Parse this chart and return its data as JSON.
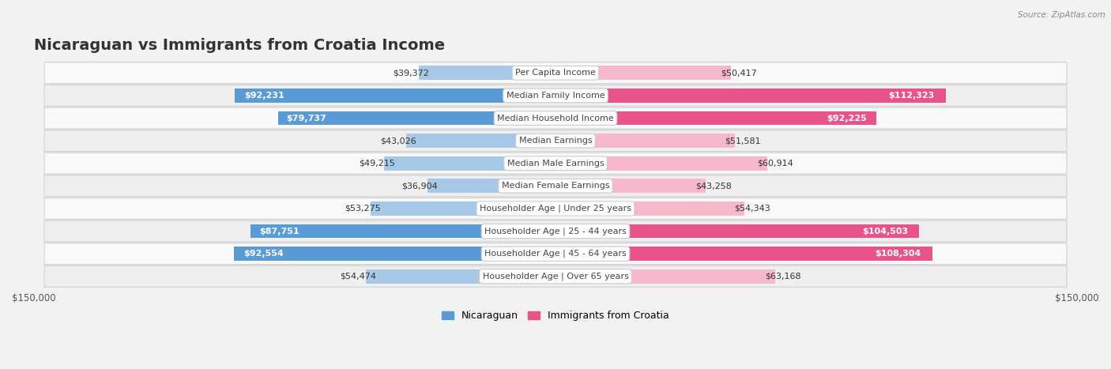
{
  "title": "Nicaraguan vs Immigrants from Croatia Income",
  "source": "Source: ZipAtlas.com",
  "categories": [
    "Per Capita Income",
    "Median Family Income",
    "Median Household Income",
    "Median Earnings",
    "Median Male Earnings",
    "Median Female Earnings",
    "Householder Age | Under 25 years",
    "Householder Age | 25 - 44 years",
    "Householder Age | 45 - 64 years",
    "Householder Age | Over 65 years"
  ],
  "nicaraguan_values": [
    39372,
    92231,
    79737,
    43026,
    49215,
    36904,
    53275,
    87751,
    92554,
    54474
  ],
  "croatia_values": [
    50417,
    112323,
    92225,
    51581,
    60914,
    43258,
    54343,
    104503,
    108304,
    63168
  ],
  "nicaraguan_labels": [
    "$39,372",
    "$92,231",
    "$79,737",
    "$43,026",
    "$49,215",
    "$36,904",
    "$53,275",
    "$87,751",
    "$92,554",
    "$54,474"
  ],
  "croatia_labels": [
    "$50,417",
    "$112,323",
    "$92,225",
    "$51,581",
    "$60,914",
    "$43,258",
    "$54,343",
    "$104,503",
    "$108,304",
    "$63,168"
  ],
  "nic_label_inside": [
    false,
    true,
    true,
    false,
    false,
    false,
    false,
    true,
    true,
    false
  ],
  "cro_label_inside": [
    false,
    true,
    true,
    false,
    false,
    false,
    false,
    true,
    true,
    false
  ],
  "max_value": 150000,
  "color_nicaraguan_light": "#a8c8e8",
  "color_nicaraguan_dark": "#5b9bd5",
  "color_croatia_light": "#f8b8cc",
  "color_croatia_dark": "#e8538a",
  "bar_height": 0.62,
  "background_color": "#f2f2f2",
  "row_bg_even": "#f9f9f9",
  "row_bg_odd": "#efefef",
  "title_fontsize": 14,
  "label_fontsize": 8,
  "category_fontsize": 8,
  "legend_fontsize": 9,
  "axis_label_fontsize": 8.5
}
